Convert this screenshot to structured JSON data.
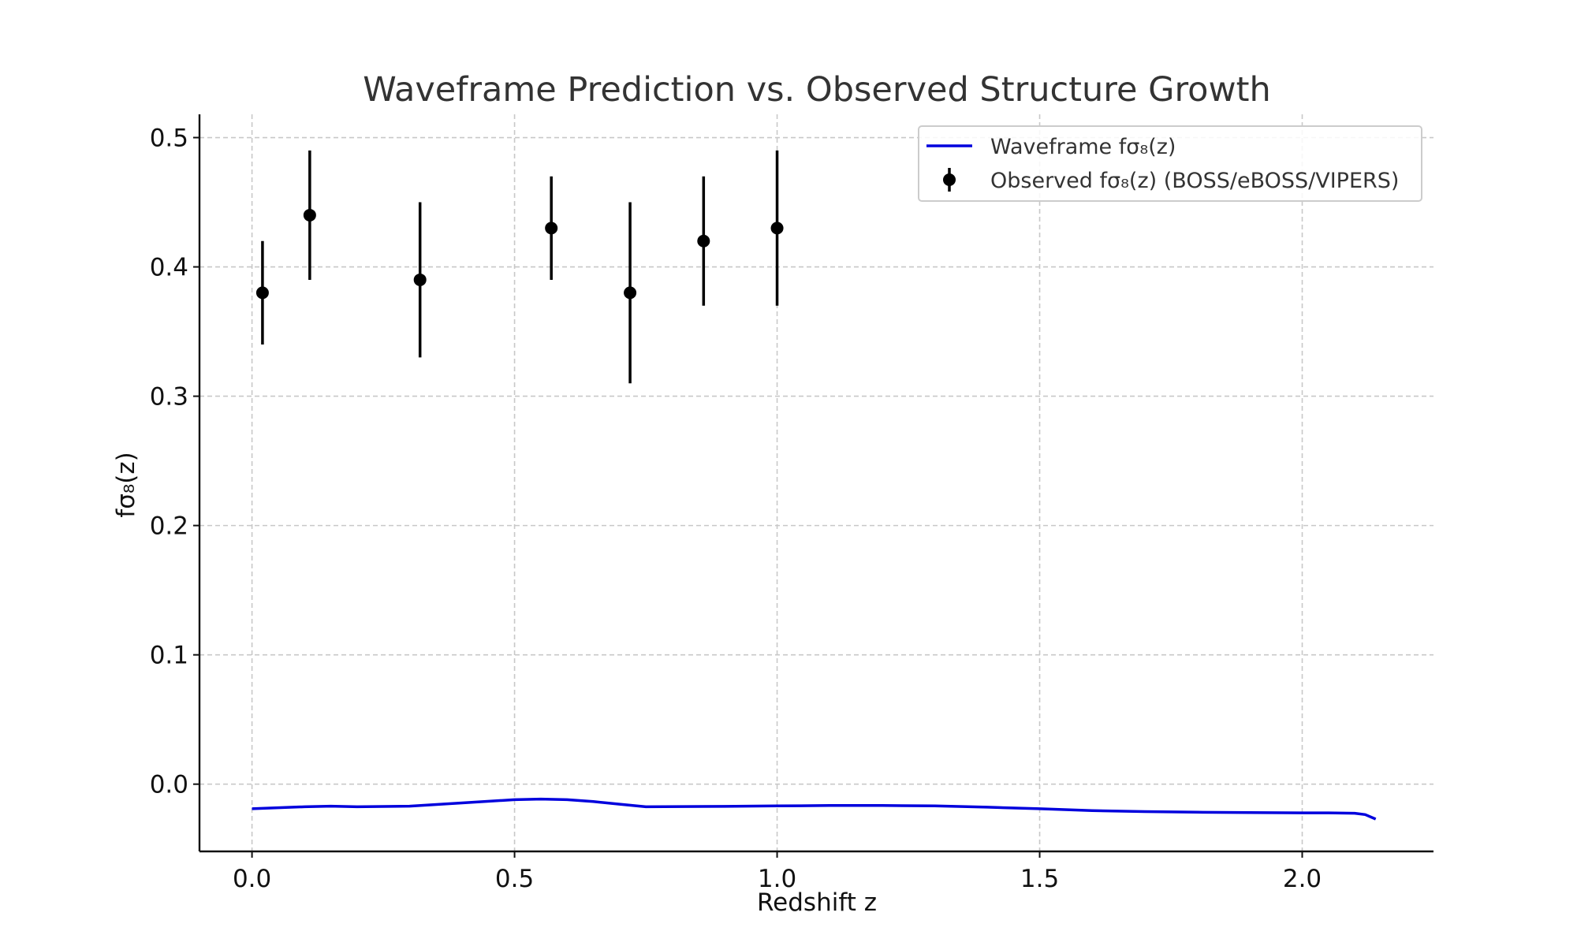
{
  "chart_data": {
    "type": "line",
    "title": "Waveframe Prediction vs. Observed Structure Growth",
    "xlabel": "Redshift z",
    "ylabel": "fσ₈(z)",
    "xlim": [
      -0.1,
      2.25
    ],
    "ylim": [
      -0.052,
      0.518
    ],
    "xticks": [
      "0.0",
      "0.5",
      "1.0",
      "1.5",
      "2.0"
    ],
    "yticks": [
      "0.0",
      "0.1",
      "0.2",
      "0.3",
      "0.4",
      "0.5"
    ],
    "grid": true,
    "legend_position": "top-right",
    "colors": {
      "model": "#0000dd",
      "observed": "#000000"
    },
    "series": [
      {
        "name": "Waveframe fσ₈(z)",
        "kind": "line",
        "x": [
          0.0,
          0.1,
          0.15,
          0.2,
          0.3,
          0.4,
          0.5,
          0.55,
          0.6,
          0.65,
          0.7,
          0.75,
          0.9,
          1.0,
          1.1,
          1.2,
          1.3,
          1.4,
          1.5,
          1.6,
          1.7,
          1.8,
          1.9,
          2.0,
          2.05,
          2.1,
          2.12,
          2.14
        ],
        "y": [
          -0.019,
          -0.0175,
          -0.017,
          -0.0175,
          -0.017,
          -0.0145,
          -0.012,
          -0.0115,
          -0.012,
          -0.0135,
          -0.0155,
          -0.0175,
          -0.0172,
          -0.0168,
          -0.0165,
          -0.0165,
          -0.0168,
          -0.0178,
          -0.019,
          -0.0205,
          -0.0212,
          -0.0217,
          -0.022,
          -0.0222,
          -0.0222,
          -0.0225,
          -0.0235,
          -0.027
        ]
      },
      {
        "name": "Observed fσ₈(z) (BOSS/eBOSS/VIPERS)",
        "kind": "errorbar",
        "x": [
          0.02,
          0.11,
          0.32,
          0.57,
          0.72,
          0.86,
          1.0
        ],
        "y": [
          0.38,
          0.44,
          0.39,
          0.43,
          0.38,
          0.42,
          0.43
        ],
        "yerr": [
          0.04,
          0.05,
          0.06,
          0.04,
          0.07,
          0.05,
          0.06
        ]
      }
    ]
  }
}
